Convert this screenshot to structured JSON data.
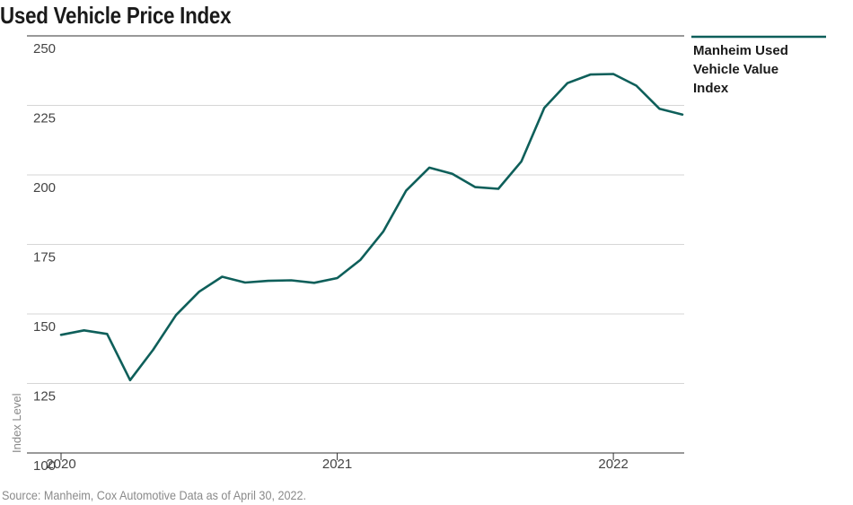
{
  "page": {
    "title": "Used Vehicle Price Index",
    "source": "Source: Manheim, Cox Automotive Data as of April 30, 2022."
  },
  "colors": {
    "series": "#0e5f5a",
    "grid": "#d6d6d6",
    "axis": "#333333"
  },
  "chart_data": {
    "type": "line",
    "title": "Used Vehicle Price Index",
    "xlabel": "",
    "ylabel": "Index Level",
    "ylim": [
      100,
      250
    ],
    "xlim": [
      "2020-01",
      "2022-04"
    ],
    "yticks": [
      100,
      125,
      150,
      175,
      200,
      225,
      250
    ],
    "xticks": [
      "2020",
      "2021",
      "2022"
    ],
    "grid": true,
    "legend_position": "top-right",
    "x": [
      "2020-01",
      "2020-02",
      "2020-03",
      "2020-04",
      "2020-05",
      "2020-06",
      "2020-07",
      "2020-08",
      "2020-09",
      "2020-10",
      "2020-11",
      "2020-12",
      "2021-01",
      "2021-02",
      "2021-03",
      "2021-04",
      "2021-05",
      "2021-06",
      "2021-07",
      "2021-08",
      "2021-09",
      "2021-10",
      "2021-11",
      "2021-12",
      "2022-01",
      "2022-02",
      "2022-03",
      "2022-04"
    ],
    "series": [
      {
        "name": "Manheim Used Vehicle Value Index",
        "values": [
          142.5,
          144.1,
          142.8,
          126.2,
          137.1,
          149.6,
          158.0,
          163.4,
          161.3,
          161.9,
          162.1,
          161.2,
          162.9,
          169.4,
          179.6,
          194.4,
          202.6,
          200.4,
          195.6,
          195.0,
          204.8,
          224.1,
          233.0,
          236.1,
          236.3,
          232.1,
          223.8,
          221.7
        ]
      }
    ]
  }
}
